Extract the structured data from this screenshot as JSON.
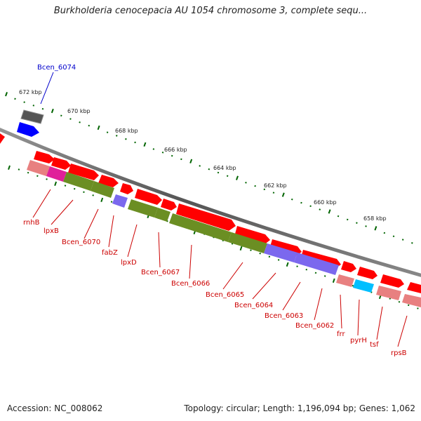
{
  "title": "Burkholderia cenocepacia AU 1054 chromosome 3, complete sequ...",
  "ticks": [
    "672 kbp",
    "670 kbp",
    "668 kbp",
    "666 kbp",
    "664 kbp",
    "662 kbp",
    "660 kbp",
    "658 kbp"
  ],
  "upper_gene_label": "Bcen_6074",
  "gene_labels": [
    "rnhB",
    "lpxB",
    "Bcen_6070",
    "fabZ",
    "lpxD",
    "Bcen_6067",
    "Bcen_6066",
    "Bcen_6065",
    "Bcen_6064",
    "Bcen_6063",
    "Bcen_6062",
    "frr",
    "pyrH",
    "tsf",
    "rpsB"
  ],
  "colors": {
    "cds_red": "#ff0000",
    "rna_pink": "#e88080",
    "magenta": "#e0209a",
    "olive": "#6b8e23",
    "purple": "#7b68ee",
    "cyan": "#00bfff",
    "gray": "#555555",
    "blue": "#0000ff",
    "tick_green": "#006400",
    "label_red": "#cc0000",
    "label_blue": "#0000cc"
  },
  "footer": {
    "accession": "Accession: NC_008062",
    "topology": "Topology: circular; Length: 1,196,094 bp; Genes: 1,062"
  }
}
